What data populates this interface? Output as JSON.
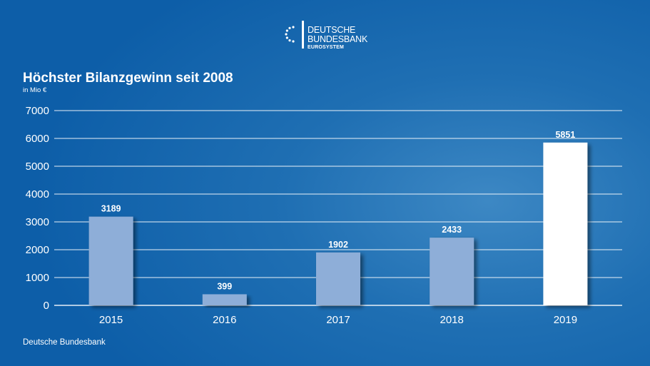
{
  "logo": {
    "line1": "DEUTSCHE",
    "line2": "BUNDESBANK",
    "line3": "EUROSYSTEM"
  },
  "footer": "Deutsche Bundesbank",
  "colors": {
    "bar": "#8eaed8",
    "bar_highlight": "#ffffff",
    "background": "#0d5ea8"
  },
  "chart_data": {
    "type": "bar",
    "title": "Höchster Bilanzgewinn seit 2008",
    "subtitle": "in Mio €",
    "categories": [
      "2015",
      "2016",
      "2017",
      "2018",
      "2019"
    ],
    "values": [
      3189,
      399,
      1902,
      2433,
      5851
    ],
    "data_labels": [
      "3189",
      "399",
      "1902",
      "2433",
      "5851"
    ],
    "highlight_index": 4,
    "ylim": [
      0,
      7000
    ],
    "yticks": [
      0,
      1000,
      2000,
      3000,
      4000,
      5000,
      6000,
      7000
    ],
    "grid": true,
    "legend": "none"
  }
}
